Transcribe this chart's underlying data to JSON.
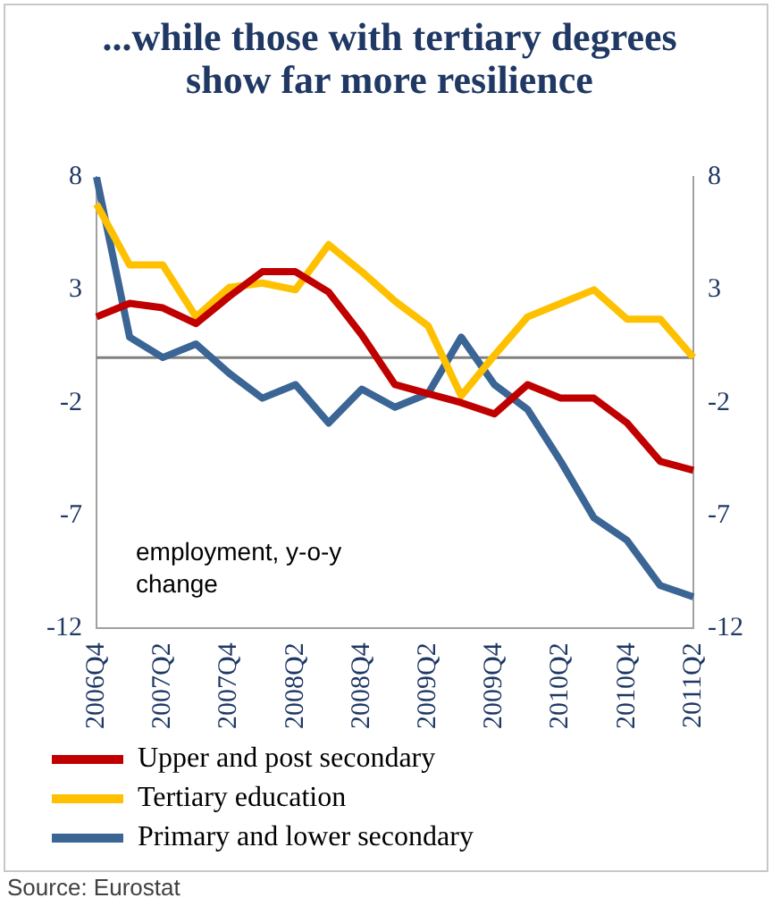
{
  "chart_data": {
    "type": "line",
    "title": "...while those with tertiary degrees show far more resilience",
    "categories": [
      "2006Q4",
      null,
      "2007Q2",
      null,
      "2007Q4",
      null,
      "2008Q2",
      null,
      "2008Q4",
      null,
      "2009Q2",
      null,
      "2009Q4",
      null,
      "2010Q2",
      null,
      "2010Q4",
      null,
      "2011Q2"
    ],
    "series": [
      {
        "name": "Upper and post secondary",
        "color": "#c00000",
        "values": [
          1.8,
          2.4,
          2.2,
          1.5,
          2.7,
          3.8,
          3.8,
          2.9,
          1.0,
          -1.2,
          -1.6,
          -2.0,
          -2.5,
          -1.2,
          -1.8,
          -1.8,
          -2.9,
          -4.6,
          -5.0
        ]
      },
      {
        "name": "Tertiary education",
        "color": "#ffc000",
        "values": [
          6.8,
          4.1,
          4.1,
          1.8,
          3.1,
          3.3,
          3.0,
          5.0,
          3.8,
          2.5,
          1.4,
          -1.7,
          0.1,
          1.8,
          2.4,
          3.0,
          1.7,
          1.7,
          0.0
        ]
      },
      {
        "name": "Primary and lower secondary",
        "color": "#3a6595",
        "values": [
          8.0,
          0.9,
          0.0,
          0.6,
          -0.7,
          -1.8,
          -1.2,
          -2.9,
          -1.4,
          -2.2,
          -1.6,
          0.9,
          -1.2,
          -2.3,
          -4.6,
          -7.1,
          -8.1,
          -10.1,
          -10.6
        ]
      }
    ],
    "ylim": [
      -12,
      8
    ],
    "yticks": [
      -12,
      -7,
      -2,
      3,
      8
    ],
    "y2lim": [
      -12,
      8
    ],
    "y2ticks": [
      -12,
      -7,
      -2,
      3,
      8
    ],
    "ref_lines": [
      {
        "axis": "y",
        "value": 0,
        "color": "#808080"
      }
    ],
    "grid": false,
    "legend": "bottom",
    "marker": "none",
    "line_style": "solid",
    "annotations": [
      "employment, y-o-y change",
      "Source: Eurostat"
    ]
  }
}
